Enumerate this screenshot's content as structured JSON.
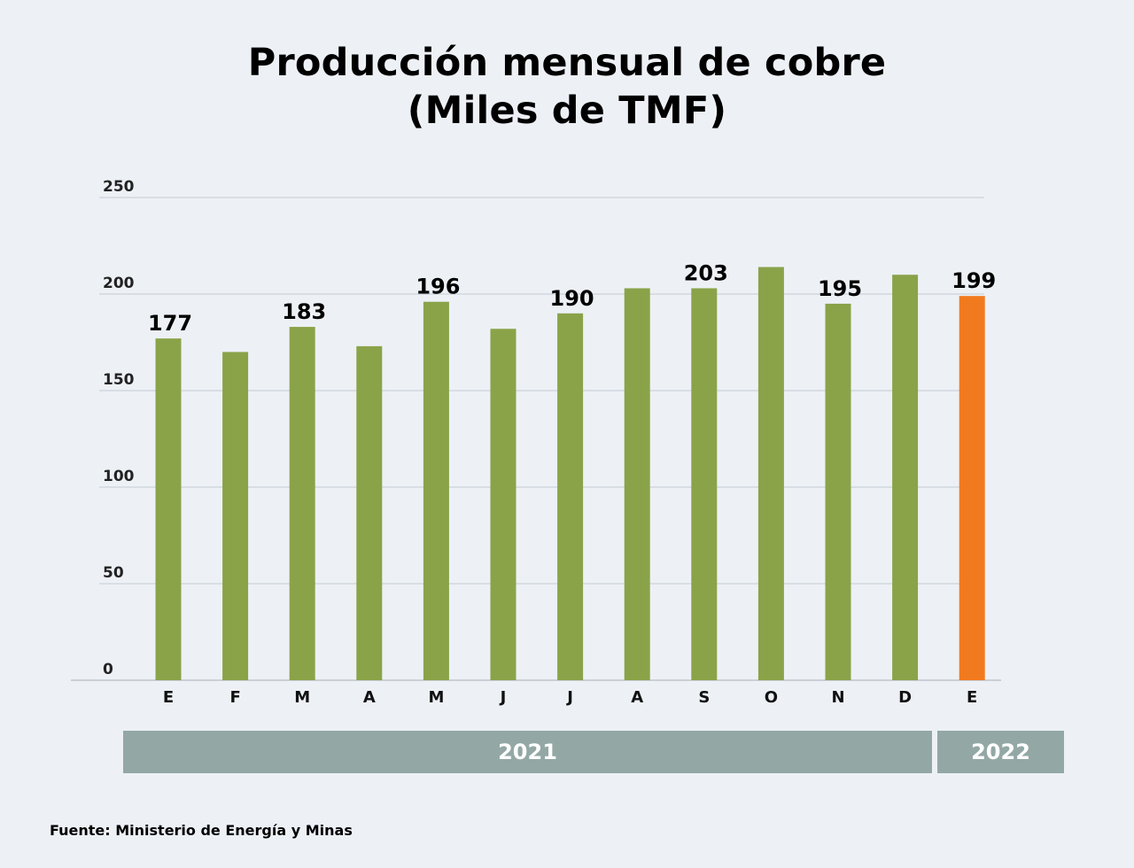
{
  "chart_data": {
    "type": "bar",
    "title": "Producción mensual de cobre",
    "subtitle": "(Miles de TMF)",
    "categories": [
      "E",
      "F",
      "M",
      "A",
      "M",
      "J",
      "J",
      "A",
      "S",
      "O",
      "N",
      "D",
      "E"
    ],
    "values": [
      177,
      170,
      183,
      173,
      196,
      182,
      190,
      203,
      203,
      214,
      195,
      210,
      199
    ],
    "data_labels": [
      "177",
      "",
      "183",
      "",
      "196",
      "",
      "190",
      "",
      "203",
      "",
      "195",
      "",
      "199"
    ],
    "ylim": [
      0,
      250
    ],
    "yticks": [
      0,
      50,
      100,
      150,
      200,
      250
    ],
    "grid": true,
    "xlabel": "",
    "ylabel": "",
    "year_groups": [
      {
        "label": "2021",
        "count": 12
      },
      {
        "label": "2022",
        "count": 1
      }
    ],
    "colors": {
      "bar": "#8aa349",
      "highlight": "#f27a1e",
      "grid": "#c4ccd3",
      "year_band": "#93a8a5"
    },
    "highlight_index": 12
  },
  "source": "Fuente: Ministerio de Energía y Minas"
}
